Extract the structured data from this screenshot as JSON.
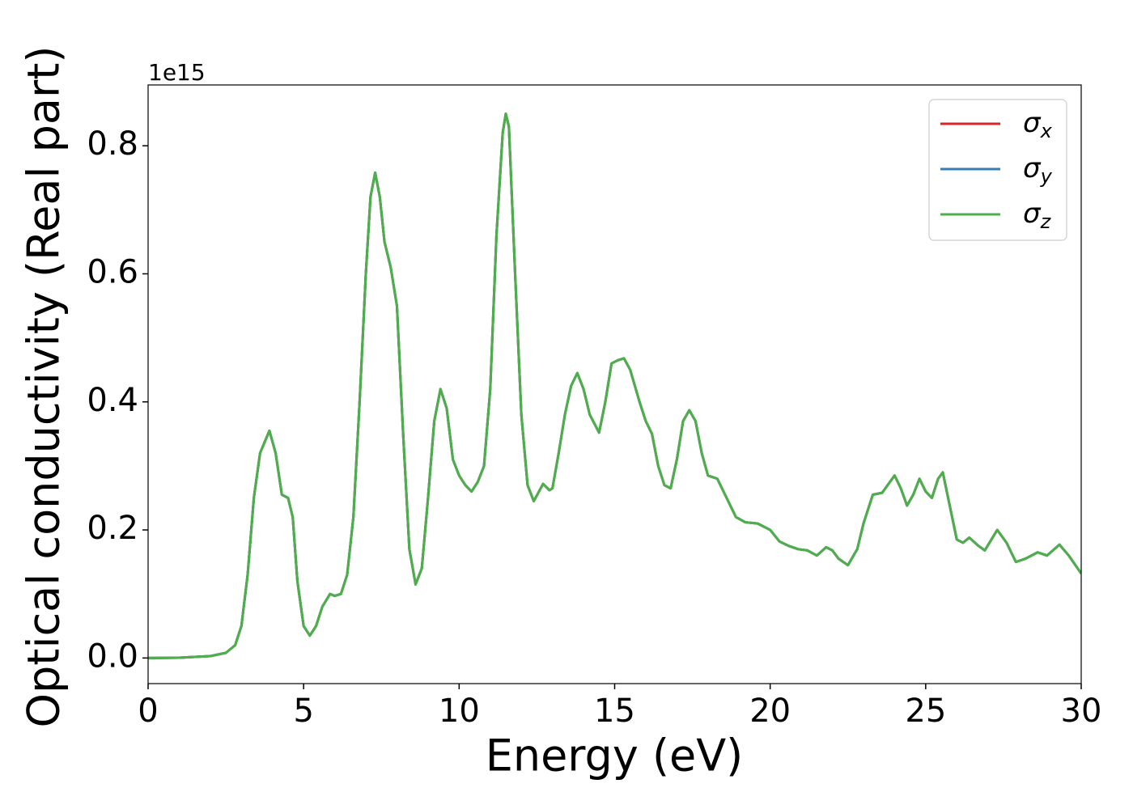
{
  "chart_data": {
    "type": "line",
    "xlabel": "Energy (eV)",
    "ylabel": "Optical conductivity (Real part)",
    "y_offset_label": "1e15",
    "x": [
      0,
      1,
      2,
      2.5,
      2.8,
      3.0,
      3.2,
      3.4,
      3.6,
      3.9,
      4.1,
      4.3,
      4.5,
      4.65,
      4.8,
      5.0,
      5.2,
      5.4,
      5.6,
      5.85,
      6.0,
      6.2,
      6.4,
      6.6,
      6.8,
      7.0,
      7.15,
      7.3,
      7.45,
      7.6,
      7.8,
      8.0,
      8.2,
      8.4,
      8.6,
      8.8,
      9.0,
      9.2,
      9.4,
      9.6,
      9.8,
      10.0,
      10.2,
      10.4,
      10.6,
      10.8,
      11.0,
      11.2,
      11.4,
      11.5,
      11.6,
      11.8,
      12.0,
      12.2,
      12.4,
      12.7,
      12.9,
      13.0,
      13.2,
      13.4,
      13.6,
      13.8,
      14.0,
      14.2,
      14.5,
      14.7,
      14.9,
      15.1,
      15.3,
      15.5,
      15.8,
      16.0,
      16.2,
      16.4,
      16.6,
      16.8,
      17.0,
      17.2,
      17.4,
      17.6,
      17.8,
      18.0,
      18.3,
      18.6,
      18.9,
      19.2,
      19.6,
      20.0,
      20.3,
      20.6,
      20.9,
      21.2,
      21.5,
      21.8,
      22.0,
      22.2,
      22.5,
      22.8,
      23.0,
      23.3,
      23.6,
      24.0,
      24.2,
      24.4,
      24.6,
      24.8,
      25.0,
      25.2,
      25.4,
      25.55,
      25.7,
      26.0,
      26.2,
      26.4,
      26.7,
      26.9,
      27.3,
      27.6,
      27.9,
      28.2,
      28.6,
      28.9,
      29.3,
      29.6,
      30.0
    ],
    "series": [
      {
        "name": "σx",
        "color": "#d62728",
        "values": [
          0,
          0.0005,
          0.003,
          0.008,
          0.02,
          0.05,
          0.13,
          0.25,
          0.32,
          0.355,
          0.32,
          0.255,
          0.25,
          0.22,
          0.12,
          0.05,
          0.035,
          0.05,
          0.08,
          0.1,
          0.097,
          0.1,
          0.13,
          0.22,
          0.4,
          0.6,
          0.72,
          0.758,
          0.72,
          0.65,
          0.61,
          0.55,
          0.35,
          0.17,
          0.115,
          0.14,
          0.25,
          0.37,
          0.42,
          0.39,
          0.31,
          0.285,
          0.27,
          0.26,
          0.275,
          0.3,
          0.42,
          0.66,
          0.82,
          0.85,
          0.83,
          0.6,
          0.38,
          0.27,
          0.245,
          0.272,
          0.262,
          0.265,
          0.32,
          0.38,
          0.425,
          0.445,
          0.42,
          0.38,
          0.352,
          0.4,
          0.46,
          0.465,
          0.468,
          0.45,
          0.4,
          0.37,
          0.35,
          0.3,
          0.27,
          0.265,
          0.31,
          0.37,
          0.387,
          0.37,
          0.32,
          0.285,
          0.28,
          0.25,
          0.22,
          0.212,
          0.21,
          0.2,
          0.182,
          0.175,
          0.17,
          0.168,
          0.16,
          0.173,
          0.168,
          0.155,
          0.145,
          0.17,
          0.21,
          0.255,
          0.258,
          0.285,
          0.265,
          0.238,
          0.255,
          0.28,
          0.26,
          0.25,
          0.28,
          0.29,
          0.255,
          0.185,
          0.18,
          0.188,
          0.175,
          0.168,
          0.2,
          0.18,
          0.15,
          0.155,
          0.165,
          0.16,
          0.177,
          0.16,
          0.132
        ]
      },
      {
        "name": "σy",
        "color": "#377eb8",
        "values": [
          0,
          0.0005,
          0.003,
          0.008,
          0.02,
          0.05,
          0.13,
          0.25,
          0.32,
          0.355,
          0.32,
          0.255,
          0.25,
          0.22,
          0.12,
          0.05,
          0.035,
          0.05,
          0.08,
          0.1,
          0.097,
          0.1,
          0.13,
          0.22,
          0.4,
          0.6,
          0.72,
          0.758,
          0.72,
          0.65,
          0.61,
          0.55,
          0.35,
          0.17,
          0.115,
          0.14,
          0.25,
          0.37,
          0.42,
          0.39,
          0.31,
          0.285,
          0.27,
          0.26,
          0.275,
          0.3,
          0.42,
          0.66,
          0.82,
          0.85,
          0.83,
          0.6,
          0.38,
          0.27,
          0.245,
          0.272,
          0.262,
          0.265,
          0.32,
          0.38,
          0.425,
          0.445,
          0.42,
          0.38,
          0.352,
          0.4,
          0.46,
          0.465,
          0.468,
          0.45,
          0.4,
          0.37,
          0.35,
          0.3,
          0.27,
          0.265,
          0.31,
          0.37,
          0.387,
          0.37,
          0.32,
          0.285,
          0.28,
          0.25,
          0.22,
          0.212,
          0.21,
          0.2,
          0.182,
          0.175,
          0.17,
          0.168,
          0.16,
          0.173,
          0.168,
          0.155,
          0.145,
          0.17,
          0.21,
          0.255,
          0.258,
          0.285,
          0.265,
          0.238,
          0.255,
          0.28,
          0.26,
          0.25,
          0.28,
          0.29,
          0.255,
          0.185,
          0.18,
          0.188,
          0.175,
          0.168,
          0.2,
          0.18,
          0.15,
          0.155,
          0.165,
          0.16,
          0.177,
          0.16,
          0.132
        ]
      },
      {
        "name": "σz",
        "color": "#4daf4a",
        "values": [
          0,
          0.0005,
          0.003,
          0.008,
          0.02,
          0.05,
          0.13,
          0.25,
          0.32,
          0.355,
          0.32,
          0.255,
          0.25,
          0.22,
          0.12,
          0.05,
          0.035,
          0.05,
          0.08,
          0.1,
          0.097,
          0.1,
          0.13,
          0.22,
          0.4,
          0.6,
          0.72,
          0.758,
          0.72,
          0.65,
          0.61,
          0.55,
          0.35,
          0.17,
          0.115,
          0.14,
          0.25,
          0.37,
          0.42,
          0.39,
          0.31,
          0.285,
          0.27,
          0.26,
          0.275,
          0.3,
          0.42,
          0.66,
          0.82,
          0.85,
          0.83,
          0.6,
          0.38,
          0.27,
          0.245,
          0.272,
          0.262,
          0.265,
          0.32,
          0.38,
          0.425,
          0.445,
          0.42,
          0.38,
          0.352,
          0.4,
          0.46,
          0.465,
          0.468,
          0.45,
          0.4,
          0.37,
          0.35,
          0.3,
          0.27,
          0.265,
          0.31,
          0.37,
          0.387,
          0.37,
          0.32,
          0.285,
          0.28,
          0.25,
          0.22,
          0.212,
          0.21,
          0.2,
          0.182,
          0.175,
          0.17,
          0.168,
          0.16,
          0.173,
          0.168,
          0.155,
          0.145,
          0.17,
          0.21,
          0.255,
          0.258,
          0.285,
          0.265,
          0.238,
          0.255,
          0.28,
          0.26,
          0.25,
          0.28,
          0.29,
          0.255,
          0.185,
          0.18,
          0.188,
          0.175,
          0.168,
          0.2,
          0.18,
          0.15,
          0.155,
          0.165,
          0.16,
          0.177,
          0.16,
          0.132
        ]
      }
    ],
    "xlim": [
      0,
      30
    ],
    "xticks": [
      0,
      5,
      10,
      15,
      20,
      25,
      30
    ],
    "ylim": [
      -0.04,
      0.895
    ],
    "yticks": [
      {
        "value": 0,
        "label": "0.0"
      },
      0.2,
      0.4,
      0.6,
      0.8
    ],
    "legend": "upper right",
    "grid": false
  }
}
